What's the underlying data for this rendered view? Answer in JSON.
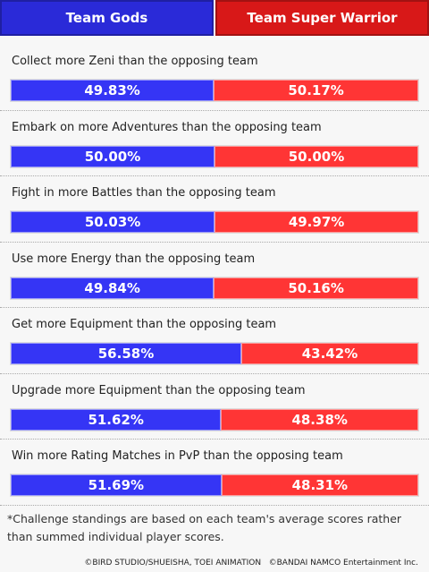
{
  "header": {
    "teams": [
      {
        "name": "Team Gods",
        "color": "#2a2ad8"
      },
      {
        "name": "Team Super Warrior",
        "color": "#d81818"
      }
    ]
  },
  "bar_colors": [
    "#3535f5",
    "#ff3535"
  ],
  "challenges": [
    {
      "title": "Collect more Zeni than the opposing team",
      "values": [
        49.83,
        50.17
      ],
      "value_labels": [
        "49.83%",
        "50.17%"
      ]
    },
    {
      "title": "Embark on more Adventures than the opposing team",
      "values": [
        50.0,
        50.0
      ],
      "value_labels": [
        "50.00%",
        "50.00%"
      ]
    },
    {
      "title": "Fight in more Battles than the opposing team",
      "values": [
        50.03,
        49.97
      ],
      "value_labels": [
        "50.03%",
        "49.97%"
      ]
    },
    {
      "title": "Use more Energy than the opposing team",
      "values": [
        49.84,
        50.16
      ],
      "value_labels": [
        "49.84%",
        "50.16%"
      ]
    },
    {
      "title": "Get more Equipment than the opposing team",
      "values": [
        56.58,
        43.42
      ],
      "value_labels": [
        "56.58%",
        "43.42%"
      ]
    },
    {
      "title": "Upgrade more Equipment than the opposing team",
      "values": [
        51.62,
        48.38
      ],
      "value_labels": [
        "51.62%",
        "48.38%"
      ]
    },
    {
      "title": "Win more Rating Matches in PvP than the opposing team",
      "values": [
        51.69,
        48.31
      ],
      "value_labels": [
        "51.69%",
        "48.31%"
      ]
    }
  ],
  "footnote": "*Challenge standings are based on each team's average scores rather than summed individual player scores.",
  "copyright": "©BIRD STUDIO/SHUEISHA, TOEI ANIMATION   ©BANDAI NAMCO Entertainment Inc."
}
